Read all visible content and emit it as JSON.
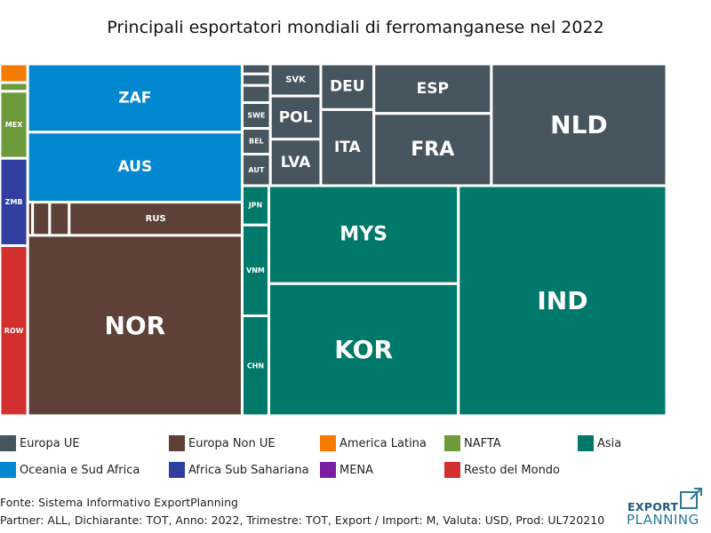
{
  "page": {
    "title": "Principali esportatori mondiali di ferromanganese nel 2022",
    "source": "Fonte: Sistema Informativo ExportPlanning",
    "details": "Partner: ALL, Dichiarante: TOT, Anno: 2022, Trimestre: TOT, Export / Import: M, Valuta: USD, Prod: UL720210",
    "logo": {
      "top": "EXPORT",
      "bottom": "PLANNING",
      "color": "#1e5a7e"
    }
  },
  "legend": [
    {
      "name": "Europa UE",
      "color": "#47555f"
    },
    {
      "name": "Europa Non UE",
      "color": "#5d4037"
    },
    {
      "name": "America Latina",
      "color": "#f57c00"
    },
    {
      "name": "NAFTA",
      "color": "#6d9a3a"
    },
    {
      "name": "Asia",
      "color": "#00796b"
    },
    {
      "name": "Oceania e Sud Africa",
      "color": "#0288d1"
    },
    {
      "name": "Africa Sub Sahariana",
      "color": "#303f9f"
    },
    {
      "name": "MENA",
      "color": "#7b1fa2"
    },
    {
      "name": "Resto del Mondo",
      "color": "#d32f2f"
    }
  ],
  "chart_data": {
    "type": "treemap",
    "title": "Principali esportatori mondiali di ferromanganese nel 2022",
    "groups": [
      {
        "name": "America Latina",
        "children": [
          {
            "label": "",
            "value": 0.64
          }
        ]
      },
      {
        "name": "NAFTA",
        "children": [
          {
            "label": "",
            "value": 0.3
          },
          {
            "label": "MEX",
            "value": 2.3
          }
        ]
      },
      {
        "name": "Africa Sub Sahariana",
        "children": [
          {
            "label": "ZMB",
            "value": 3.0
          }
        ]
      },
      {
        "name": "Resto del Mondo",
        "children": [
          {
            "label": "ROW",
            "value": 5.84
          }
        ]
      },
      {
        "name": "Oceania e Sud Africa",
        "children": [
          {
            "label": "ZAF",
            "value": 18.1
          },
          {
            "label": "AUS",
            "value": 18.6
          }
        ]
      },
      {
        "name": "Europa Non UE",
        "children": [
          {
            "label": "",
            "value": 0.2
          },
          {
            "label": "",
            "value": 0.7
          },
          {
            "label": "",
            "value": 0.8
          },
          {
            "label": "RUS",
            "value": 7.1
          },
          {
            "label": "NOR",
            "value": 47.9
          }
        ]
      },
      {
        "name": "Europa UE",
        "children": [
          {
            "label": "",
            "value": 0.35
          },
          {
            "label": "",
            "value": 0.4
          },
          {
            "label": "",
            "value": 0.6
          },
          {
            "label": "SWE",
            "value": 0.9
          },
          {
            "label": "BEL",
            "value": 0.9
          },
          {
            "label": "AUT",
            "value": 1.1
          },
          {
            "label": "SVK",
            "value": 2.0
          },
          {
            "label": "POL",
            "value": 2.7
          },
          {
            "label": "LVA",
            "value": 2.9
          },
          {
            "label": "DEU",
            "value": 3.0
          },
          {
            "label": "ITA",
            "value": 5.0
          },
          {
            "label": "ESP",
            "value": 7.2
          },
          {
            "label": "FRA",
            "value": 10.5
          },
          {
            "label": "NLD",
            "value": 26.4
          }
        ]
      },
      {
        "name": "Asia",
        "children": [
          {
            "label": "JPN",
            "value": 1.3
          },
          {
            "label": "VNM",
            "value": 3.0
          },
          {
            "label": "CHN",
            "value": 3.3
          },
          {
            "label": "MYS",
            "value": 23.0
          },
          {
            "label": "KOR",
            "value": 31.0
          },
          {
            "label": "IND",
            "value": 59.3
          }
        ]
      }
    ]
  }
}
